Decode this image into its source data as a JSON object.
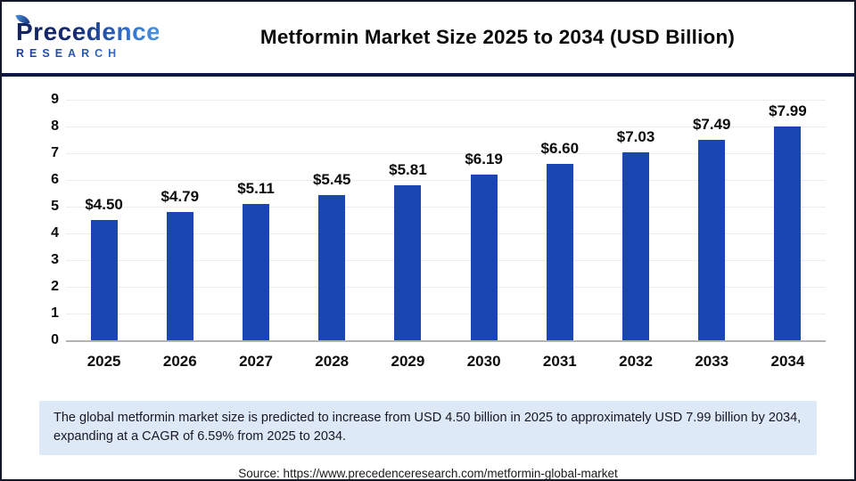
{
  "brand": {
    "line1": "Precedence",
    "line2": "RESEARCH"
  },
  "header": {
    "title": "Metformin Market Size 2025 to 2034 (USD Billion)"
  },
  "chart_data": {
    "type": "bar",
    "title": "Metformin Market Size 2025 to 2034 (USD Billion)",
    "categories": [
      "2025",
      "2026",
      "2027",
      "2028",
      "2029",
      "2030",
      "2031",
      "2032",
      "2033",
      "2034"
    ],
    "values": [
      4.5,
      4.79,
      5.11,
      5.45,
      5.81,
      6.19,
      6.6,
      7.03,
      7.49,
      7.99
    ],
    "data_labels": [
      "$4.50",
      "$4.79",
      "$5.11",
      "$5.45",
      "$5.81",
      "$6.19",
      "$6.60",
      "$7.03",
      "$7.49",
      "$7.99"
    ],
    "xlabel": "",
    "ylabel": "",
    "ylim": [
      0,
      9
    ],
    "ytick_step": 1,
    "grid": "horizontal",
    "legend": "none",
    "unit": "USD Billion"
  },
  "note": {
    "text": "The global metformin market size is predicted to increase from USD 4.50 billion in 2025 to approximately USD 7.99 billion by 2034, expanding at a CAGR of 6.59% from 2025 to 2034."
  },
  "source": {
    "text": "Source: https://www.precedenceresearch.com/metformin-global-market"
  },
  "colors": {
    "bar": "#1a46b2",
    "note_bg": "#dde9f6",
    "divider": "#0e1644",
    "grid": "#ececec",
    "baseline": "#b3b3b3",
    "border": "#15172b"
  }
}
